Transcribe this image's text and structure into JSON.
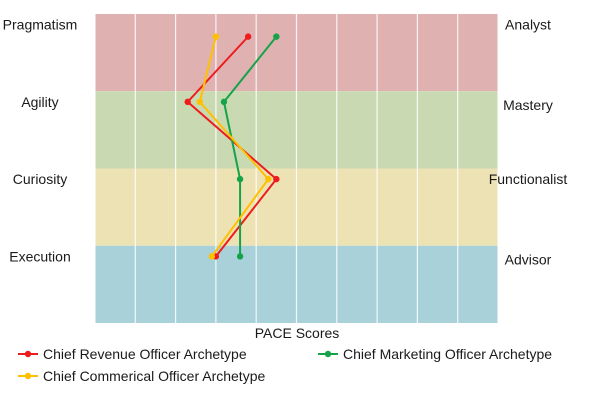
{
  "chart_data": {
    "type": "line",
    "xlabel": "PACE Scores",
    "x_range": [
      0,
      10
    ],
    "grid": true,
    "categories_left": [
      "Pragmatism",
      "Agility",
      "Curiosity",
      "Execution"
    ],
    "categories_right": [
      "Analyst",
      "Mastery",
      "Functionalist",
      "Advisor"
    ],
    "bands": [
      {
        "label": "Pragmatism",
        "color": "#dfb1b1"
      },
      {
        "label": "Agility",
        "color": "#c9dab3"
      },
      {
        "label": "Curiosity",
        "color": "#ede2b3"
      },
      {
        "label": "Execution",
        "color": "#a8d1d9"
      }
    ],
    "series": [
      {
        "name": "Chief Revenue Officer Archetype",
        "color": "#ee1c1c",
        "values": [
          3.8,
          2.3,
          4.5,
          3.0
        ]
      },
      {
        "name": "Chief Marketing Officer Archetype",
        "color": "#15a34a",
        "values": [
          4.5,
          3.2,
          3.6,
          3.6
        ]
      },
      {
        "name": "Chief Commerical Officer Archetype",
        "color": "#ffc000",
        "values": [
          3.0,
          2.6,
          4.3,
          2.9
        ]
      }
    ],
    "legend_position": "bottom"
  }
}
